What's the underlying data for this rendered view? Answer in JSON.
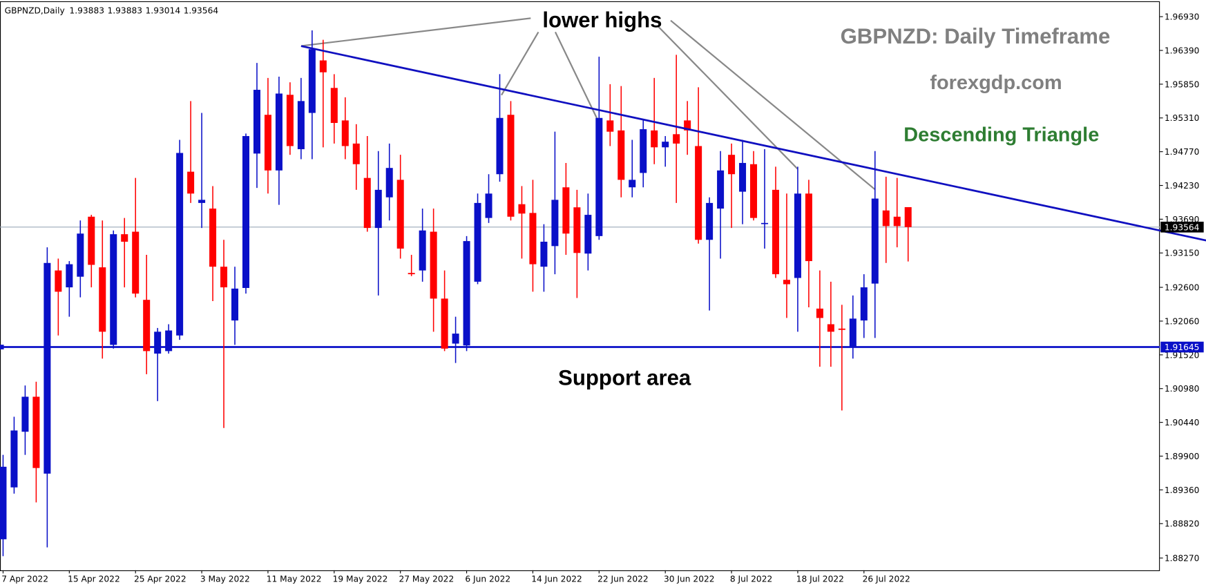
{
  "chart_data": {
    "type": "candlestick",
    "symbol": "GBPNZD,Daily",
    "title": "GBPNZD: Daily Timeframe",
    "subtitle": "forexgdp.com",
    "pattern": "Descending Triangle",
    "annotations": [
      "lower highs",
      "Support area"
    ],
    "up_color": "#0a10c8",
    "down_color": "#ff0000",
    "categories": [
      "7 Apr 2022",
      null,
      null,
      null,
      null,
      null,
      "15 Apr 2022",
      null,
      null,
      null,
      null,
      null,
      "25 Apr 2022",
      null,
      null,
      null,
      null,
      null,
      "3 May 2022",
      null,
      null,
      null,
      null,
      null,
      "11 May 2022",
      null,
      null,
      null,
      null,
      null,
      "19 May 2022",
      null,
      null,
      null,
      null,
      null,
      "27 May 2022",
      null,
      null,
      null,
      null,
      null,
      "6 Jun 2022",
      null,
      null,
      null,
      null,
      null,
      "14 Jun 2022",
      null,
      null,
      null,
      null,
      null,
      "22 Jun 2022",
      null,
      null,
      null,
      null,
      null,
      "30 Jun 2022",
      null,
      null,
      null,
      null,
      null,
      "8 Jul 2022",
      null,
      null,
      null,
      null,
      null,
      "18 Jul 2022",
      null,
      null,
      null,
      null,
      null,
      "26 Jul 2022",
      null,
      null,
      null,
      null
    ],
    "open": [
      1.8857,
      1.894,
      1.9029,
      1.9085,
      1.8962,
      1.9287,
      1.926,
      1.9277,
      1.9373,
      1.9292,
      1.9168,
      1.9345,
      1.9349,
      1.924,
      1.9154,
      1.9158,
      1.9183,
      1.9445,
      1.9395,
      1.9386,
      1.9293,
      1.9207,
      1.9259,
      1.9474,
      1.9536,
      1.9447,
      1.9568,
      1.9481,
      1.9539,
      1.9623,
      1.9579,
      1.9527,
      1.949,
      1.9435,
      1.9355,
      1.9404,
      1.9432,
      1.9283,
      1.9287,
      1.9349,
      1.9242,
      1.917,
      1.9167,
      1.9269,
      1.9371,
      1.9441,
      1.9536,
      1.9393,
      1.9379,
      1.9293,
      1.9326,
      1.942,
      1.9388,
      1.9314,
      1.9342,
      1.9527,
      1.9511,
      1.942,
      1.9443,
      1.9511,
      1.9484,
      1.9505,
      1.9527,
      1.9486,
      1.9336,
      1.9386,
      1.9472,
      1.9413,
      1.9457,
      1.9362,
      1.9416,
      1.9272,
      1.9275,
      1.941,
      1.9226,
      1.9201,
      1.9194,
      1.9164,
      1.9207,
      1.9266,
      1.9383,
      1.9373,
      1.93883
    ],
    "high": [
      1.8992,
      1.9053,
      1.9103,
      1.9109,
      1.9324,
      1.9306,
      1.9302,
      1.9367,
      1.9376,
      1.9367,
      1.9351,
      1.9371,
      1.9435,
      1.9312,
      1.9195,
      1.9201,
      1.9496,
      1.9558,
      1.9539,
      1.9422,
      1.9336,
      1.9293,
      1.9506,
      1.9619,
      1.9595,
      1.9597,
      1.9588,
      1.9595,
      1.9671,
      1.9656,
      1.9601,
      1.9564,
      1.9521,
      1.9502,
      1.9478,
      1.949,
      1.9472,
      1.9312,
      1.9386,
      1.9386,
      1.9287,
      1.9213,
      1.9342,
      1.941,
      1.9441,
      1.9601,
      1.9558,
      1.9422,
      1.9432,
      1.9361,
      1.9509,
      1.9459,
      1.9416,
      1.941,
      1.9629,
      1.9585,
      1.9582,
      1.9496,
      1.9527,
      1.9595,
      1.9502,
      1.9632,
      1.9558,
      1.958,
      1.9404,
      1.9478,
      1.949,
      1.9496,
      1.9478,
      1.9481,
      1.9453,
      1.941,
      1.9453,
      1.9432,
      1.9287,
      1.9269,
      1.9232,
      1.9247,
      1.9281,
      1.9478,
      1.9437,
      1.9435,
      1.93883
    ],
    "low": [
      1.883,
      1.893,
      1.8992,
      1.8916,
      1.8844,
      1.9183,
      1.9213,
      1.9244,
      1.926,
      1.9146,
      1.9162,
      1.926,
      1.9244,
      1.9121,
      1.9078,
      1.9154,
      1.9176,
      1.9395,
      1.9355,
      1.9238,
      1.9035,
      1.9168,
      1.925,
      1.9419,
      1.941,
      1.9392,
      1.9472,
      1.9465,
      1.9465,
      1.9484,
      1.949,
      1.9465,
      1.9416,
      1.9349,
      1.9247,
      1.9367,
      1.9306,
      1.9278,
      1.9269,
      1.9189,
      1.9158,
      1.9139,
      1.9158,
      1.9265,
      1.9363,
      1.9429,
      1.9367,
      1.9306,
      1.9253,
      1.9253,
      1.9281,
      1.9312,
      1.9243,
      1.9287,
      1.9336,
      1.9486,
      1.9404,
      1.9404,
      1.942,
      1.9457,
      1.9453,
      1.9395,
      1.9472,
      1.933,
      1.9223,
      1.9306,
      1.9355,
      1.9361,
      1.9367,
      1.9322,
      1.9275,
      1.9211,
      1.9189,
      1.9228,
      1.9133,
      1.9133,
      1.9063,
      1.9146,
      1.9179,
      1.9179,
      1.9299,
      1.9324,
      1.93014
    ],
    "close": [
      1.8973,
      1.9031,
      1.9085,
      1.8971,
      1.9299,
      1.9253,
      1.9297,
      1.9346,
      1.9296,
      1.9189,
      1.9345,
      1.9333,
      1.925,
      1.9158,
      1.9189,
      1.9191,
      1.9475,
      1.941,
      1.94,
      1.9293,
      1.926,
      1.9258,
      1.9502,
      1.9576,
      1.9447,
      1.957,
      1.9486,
      1.9558,
      1.9641,
      1.9604,
      1.9523,
      1.9486,
      1.9457,
      1.9355,
      1.9416,
      1.9451,
      1.9322,
      1.9281,
      1.9351,
      1.9242,
      1.9162,
      1.9186,
      1.9334,
      1.9395,
      1.941,
      1.9531,
      1.9373,
      1.9378,
      1.9297,
      1.9333,
      1.94,
      1.9346,
      1.9315,
      1.9376,
      1.9531,
      1.9509,
      1.9432,
      1.9432,
      1.9513,
      1.9484,
      1.9493,
      1.949,
      1.9511,
      1.9336,
      1.9395,
      1.9447,
      1.9441,
      1.9459,
      1.9371,
      1.9363,
      1.9281,
      1.9265,
      1.941,
      1.9302,
      1.9211,
      1.9189,
      1.9192,
      1.921,
      1.926,
      1.9402,
      1.9358,
      1.9358,
      1.93564
    ],
    "trendline": {
      "x": [
        27,
        109
      ],
      "y": [
        1.9646,
        1.9335
      ],
      "color": "#1010c0"
    },
    "support": {
      "value": 1.91645,
      "color": "#0a10c8"
    },
    "ylim": [
      1.88073,
      1.97176
    ],
    "yticks": [
      {
        "value": 1.9693,
        "label": "1.96930"
      },
      {
        "value": 1.9639,
        "label": "1.96390"
      },
      {
        "value": 1.9585,
        "label": "1.95850"
      },
      {
        "value": 1.9531,
        "label": "1.95310"
      },
      {
        "value": 1.9477,
        "label": "1.94770"
      },
      {
        "value": 1.9423,
        "label": "1.94230"
      },
      {
        "value": 1.9369,
        "label": "1.93690"
      },
      {
        "value": 1.9315,
        "label": "1.93150"
      },
      {
        "value": 1.926,
        "label": "1.92600"
      },
      {
        "value": 1.9206,
        "label": "1.92060"
      },
      {
        "value": 1.9152,
        "label": "1.91520"
      },
      {
        "value": 1.9098,
        "label": "1.90980"
      },
      {
        "value": 1.9044,
        "label": "1.90440"
      },
      {
        "value": 1.899,
        "label": "1.89900"
      },
      {
        "value": 1.8936,
        "label": "1.89360"
      },
      {
        "value": 1.8882,
        "label": "1.88820"
      },
      {
        "value": 1.8827,
        "label": "1.88270"
      }
    ],
    "grid": false
  }
}
